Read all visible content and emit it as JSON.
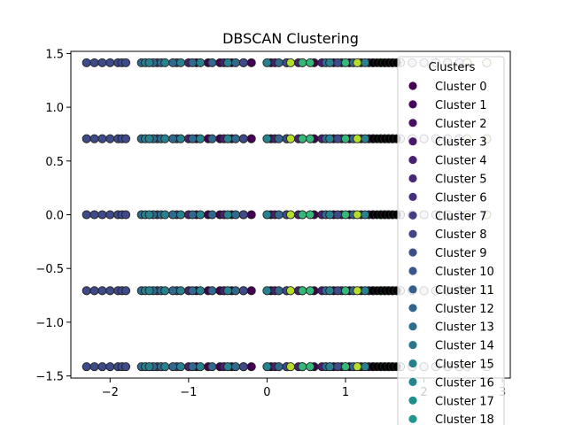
{
  "chart_data": {
    "type": "scatter",
    "title": "DBSCAN Clustering",
    "xlabel": "",
    "ylabel": "",
    "xlim": [
      -2.5,
      3.1
    ],
    "ylim": [
      -1.52,
      1.52
    ],
    "x_ticks": [
      -2,
      -1,
      0,
      1,
      2,
      3
    ],
    "y_ticks": [
      -1.5,
      -1.0,
      -0.5,
      0.0,
      0.5,
      1.0,
      1.5
    ],
    "x_tick_labels": [
      "−2",
      "−1",
      "0",
      "1",
      "2",
      "3"
    ],
    "y_tick_labels": [
      "−1.5",
      "−1.0",
      "−0.5",
      "0.0",
      "0.5",
      "1.0",
      "1.5"
    ],
    "y_rows": [
      -1.414,
      -0.707,
      0.0,
      0.707,
      1.414
    ],
    "grid": false,
    "legend": {
      "title": "Clusters",
      "placement": "right",
      "labels": [
        "Cluster 0",
        "Cluster 1",
        "Cluster 2",
        "Cluster 3",
        "Cluster 4",
        "Cluster 5",
        "Cluster 6",
        "Cluster 7",
        "Cluster 8",
        "Cluster 9",
        "Cluster 10",
        "Cluster 11",
        "Cluster 12",
        "Cluster 13",
        "Cluster 14",
        "Cluster 15",
        "Cluster 16",
        "Cluster 17",
        "Cluster 18"
      ],
      "colors": [
        "#440154",
        "#46085c",
        "#471063",
        "#48186a",
        "#482071",
        "#472777",
        "#462f7c",
        "#433e85",
        "#404688",
        "#3d4d8a",
        "#39558c",
        "#355f8d",
        "#31678e",
        "#2e6f8e",
        "#2b758e",
        "#277f8e",
        "#25858e",
        "#228d8d",
        "#1f958b"
      ]
    },
    "series": [
      {
        "color": "#440154",
        "x": [
          -0.9,
          -0.75,
          -0.6,
          -0.45,
          -0.2,
          0.05,
          0.25,
          0.6,
          0.85,
          1.05,
          1.3,
          1.5
        ]
      },
      {
        "color": "#482071",
        "x": [
          -1.0,
          -0.55,
          -0.3,
          0.1,
          0.4,
          0.7,
          0.95,
          1.2,
          1.45
        ]
      },
      {
        "color": "#3e4a89",
        "x": [
          -2.3,
          -2.2,
          -2.1,
          -2.0,
          -1.9,
          -1.85,
          -1.8,
          -1.4,
          -1.15,
          -0.3,
          0.25,
          0.9
        ]
      },
      {
        "color": "#31688e",
        "x": [
          -1.6,
          -1.45,
          -1.35,
          -1.2,
          -0.95,
          -0.7,
          -0.4,
          0.15,
          0.75,
          1.1
        ]
      },
      {
        "color": "#26828e",
        "x": [
          -1.55,
          -1.5,
          -1.3,
          -1.1,
          -0.85,
          -0.5,
          0.0,
          0.45,
          0.8,
          1.25
        ]
      },
      {
        "color": "#35b779",
        "x": [
          0.45,
          0.55,
          1.0,
          1.35,
          1.55
        ]
      },
      {
        "color": "#b5de2b",
        "x": [
          0.3,
          1.15,
          1.6
        ]
      },
      {
        "color": "#d3d7e6",
        "x": [
          1.7,
          1.85,
          2.0,
          2.15,
          2.3,
          2.45
        ]
      },
      {
        "color": "#eef4c8",
        "x": [
          2.55,
          2.8
        ]
      },
      {
        "color": "#000000",
        "x": [
          1.35,
          1.4,
          1.45,
          1.5,
          1.55,
          1.6,
          1.65
        ]
      }
    ]
  }
}
